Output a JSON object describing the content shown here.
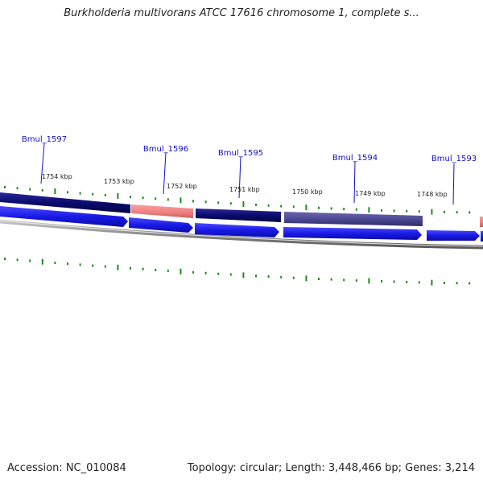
{
  "title": "Burkholderia multivorans ATCC 17616 chromosome 1, complete s...",
  "accession": "Accession: NC_010084",
  "topology": "Topology: circular; Length: 3,448,466 bp; Genes: 3,214",
  "colors": {
    "label": "#1010c8",
    "forward_cds": "#1a1ae6",
    "track_navy": "#0a0a6e",
    "track_pink": "#f08080",
    "track_slate": "#4a4690",
    "tick": "#1e8a1e",
    "backbone": "#8a8a8a",
    "text": "#222222"
  },
  "gene_labels": [
    "Bmul_1597",
    "Bmul_1596",
    "Bmul_1595",
    "Bmul_1594",
    "Bmul_1593"
  ],
  "kbp_labels": [
    "1754 kbp",
    "1753 kbp",
    "1752 kbp",
    "1751 kbp",
    "1750 kbp",
    "1749 kbp",
    "1748 kbp"
  ]
}
